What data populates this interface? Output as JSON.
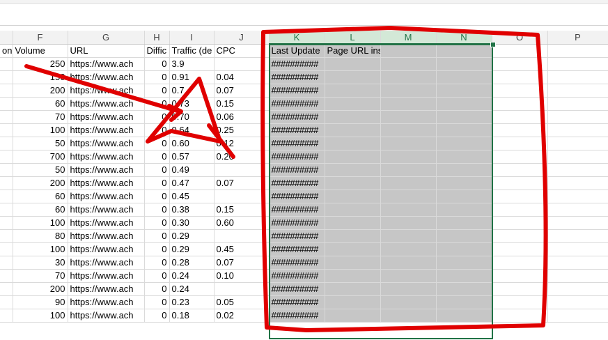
{
  "columns": [
    {
      "letter": "",
      "selected": false
    },
    {
      "letter": "F",
      "selected": false
    },
    {
      "letter": "G",
      "selected": false
    },
    {
      "letter": "H",
      "selected": false
    },
    {
      "letter": "I",
      "selected": false
    },
    {
      "letter": "J",
      "selected": false
    },
    {
      "letter": "K",
      "selected": true
    },
    {
      "letter": "L",
      "selected": true
    },
    {
      "letter": "M",
      "selected": true
    },
    {
      "letter": "N",
      "selected": true
    },
    {
      "letter": "O",
      "selected": false
    },
    {
      "letter": "P",
      "selected": false
    }
  ],
  "header_row": [
    "on",
    "Volume",
    "URL",
    "Diffic",
    "Traffic (de",
    "CPC",
    "Last Update",
    "Page URL inside",
    "",
    "",
    "",
    ""
  ],
  "rows": [
    {
      "volume": "250",
      "url": "https://www.ach",
      "diff": "0",
      "traffic": "3.9",
      "cpc": "",
      "last_update": "##########"
    },
    {
      "volume": "150",
      "url": "https://www.ach",
      "diff": "0",
      "traffic": "0.91",
      "cpc": "0.04",
      "last_update": "##########"
    },
    {
      "volume": "200",
      "url": "https://www.ach",
      "diff": "0",
      "traffic": "0.7",
      "cpc": "0.07",
      "last_update": "##########"
    },
    {
      "volume": "60",
      "url": "https://www.ach",
      "diff": "0",
      "traffic": "0.73",
      "cpc": "0.15",
      "last_update": "##########"
    },
    {
      "volume": "70",
      "url": "https://www.ach",
      "diff": "0",
      "traffic": "0.70",
      "cpc": "0.06",
      "last_update": "##########"
    },
    {
      "volume": "100",
      "url": "https://www.ach",
      "diff": "0",
      "traffic": "0.64",
      "cpc": "0.25",
      "last_update": "##########"
    },
    {
      "volume": "50",
      "url": "https://www.ach",
      "diff": "0",
      "traffic": "0.60",
      "cpc": "0.12",
      "last_update": "##########"
    },
    {
      "volume": "700",
      "url": "https://www.ach",
      "diff": "0",
      "traffic": "0.57",
      "cpc": "0.20",
      "last_update": "##########"
    },
    {
      "volume": "50",
      "url": "https://www.ach",
      "diff": "0",
      "traffic": "0.49",
      "cpc": "",
      "last_update": "##########"
    },
    {
      "volume": "200",
      "url": "https://www.ach",
      "diff": "0",
      "traffic": "0.47",
      "cpc": "0.07",
      "last_update": "##########"
    },
    {
      "volume": "60",
      "url": "https://www.ach",
      "diff": "0",
      "traffic": "0.45",
      "cpc": "",
      "last_update": "##########"
    },
    {
      "volume": "60",
      "url": "https://www.ach",
      "diff": "0",
      "traffic": "0.38",
      "cpc": "0.15",
      "last_update": "##########"
    },
    {
      "volume": "100",
      "url": "https://www.ach",
      "diff": "0",
      "traffic": "0.30",
      "cpc": "0.60",
      "last_update": "##########"
    },
    {
      "volume": "80",
      "url": "https://www.ach",
      "diff": "0",
      "traffic": "0.29",
      "cpc": "",
      "last_update": "##########"
    },
    {
      "volume": "100",
      "url": "https://www.ach",
      "diff": "0",
      "traffic": "0.29",
      "cpc": "0.45",
      "last_update": "##########"
    },
    {
      "volume": "30",
      "url": "https://www.ach",
      "diff": "0",
      "traffic": "0.28",
      "cpc": "0.07",
      "last_update": "##########"
    },
    {
      "volume": "70",
      "url": "https://www.ach",
      "diff": "0",
      "traffic": "0.24",
      "cpc": "0.10",
      "last_update": "##########"
    },
    {
      "volume": "200",
      "url": "https://www.ach",
      "diff": "0",
      "traffic": "0.24",
      "cpc": "",
      "last_update": "##########"
    },
    {
      "volume": "90",
      "url": "https://www.ach",
      "diff": "0",
      "traffic": "0.23",
      "cpc": "0.05",
      "last_update": "##########"
    },
    {
      "volume": "100",
      "url": "https://www.ach",
      "diff": "0",
      "traffic": "0.18",
      "cpc": "0.02",
      "last_update": "##########"
    }
  ],
  "colors": {
    "selection_accent": "#217346",
    "selected_fill": "#c6c6c6",
    "annotation_ink": "#e00000"
  }
}
